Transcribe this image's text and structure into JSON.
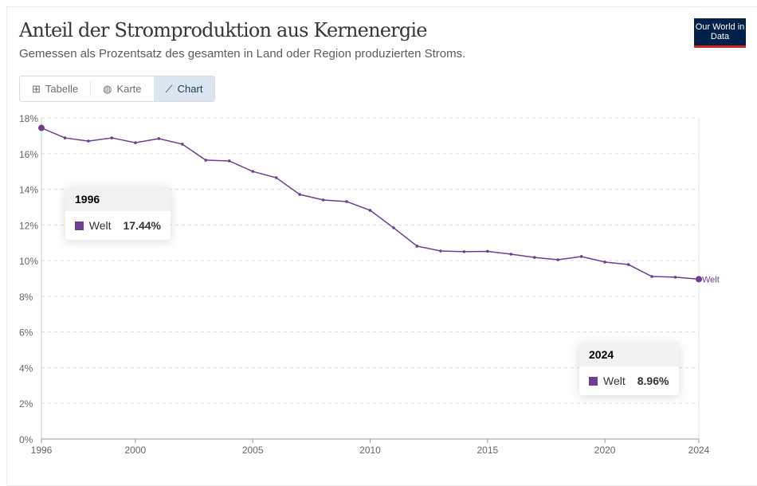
{
  "header": {
    "title": "Anteil der Stromproduktion aus Kernenergie",
    "subtitle": "Gemessen als Prozentsatz des gesamten in Land oder Region produzierten Stroms.",
    "logo": "Our World in Data"
  },
  "tabs": [
    {
      "label": "Tabelle",
      "icon": "table-icon"
    },
    {
      "label": "Karte",
      "icon": "globe-icon"
    },
    {
      "label": "Chart",
      "icon": "line-chart-icon",
      "active": true
    }
  ],
  "tooltips": [
    {
      "year": "1996",
      "series": "Welt",
      "value": "17.44%"
    },
    {
      "year": "2024",
      "series": "Welt",
      "value": "8.96%"
    }
  ],
  "colors": {
    "series": "#6d3e91"
  },
  "chart_data": {
    "type": "line",
    "title": "Anteil der Stromproduktion aus Kernenergie",
    "ylim": [
      0,
      18
    ],
    "yticks": [
      0,
      2,
      4,
      6,
      8,
      10,
      12,
      14,
      16,
      18
    ],
    "ytick_labels": [
      "0%",
      "2%",
      "4%",
      "6%",
      "8%",
      "10%",
      "12%",
      "14%",
      "16%",
      "18%"
    ],
    "xlim": [
      1996,
      2024
    ],
    "xticks": [
      1996,
      2000,
      2005,
      2010,
      2015,
      2020,
      2024
    ],
    "xtick_labels": [
      "1996",
      "2000",
      "2005",
      "2010",
      "2015",
      "2020",
      "2024"
    ],
    "grid": true,
    "series": [
      {
        "name": "Welt",
        "label": "Welt",
        "x": [
          1996,
          1997,
          1998,
          1999,
          2000,
          2001,
          2002,
          2003,
          2004,
          2005,
          2006,
          2007,
          2008,
          2009,
          2010,
          2011,
          2012,
          2013,
          2014,
          2015,
          2016,
          2017,
          2018,
          2019,
          2020,
          2021,
          2022,
          2023,
          2024
        ],
        "values": [
          17.44,
          16.88,
          16.7,
          16.88,
          16.61,
          16.84,
          16.53,
          15.63,
          15.59,
          15.0,
          14.65,
          13.71,
          13.4,
          13.31,
          12.82,
          11.84,
          10.81,
          10.54,
          10.5,
          10.52,
          10.36,
          10.18,
          10.05,
          10.23,
          9.92,
          9.78,
          9.11,
          9.07,
          8.96
        ]
      }
    ]
  }
}
